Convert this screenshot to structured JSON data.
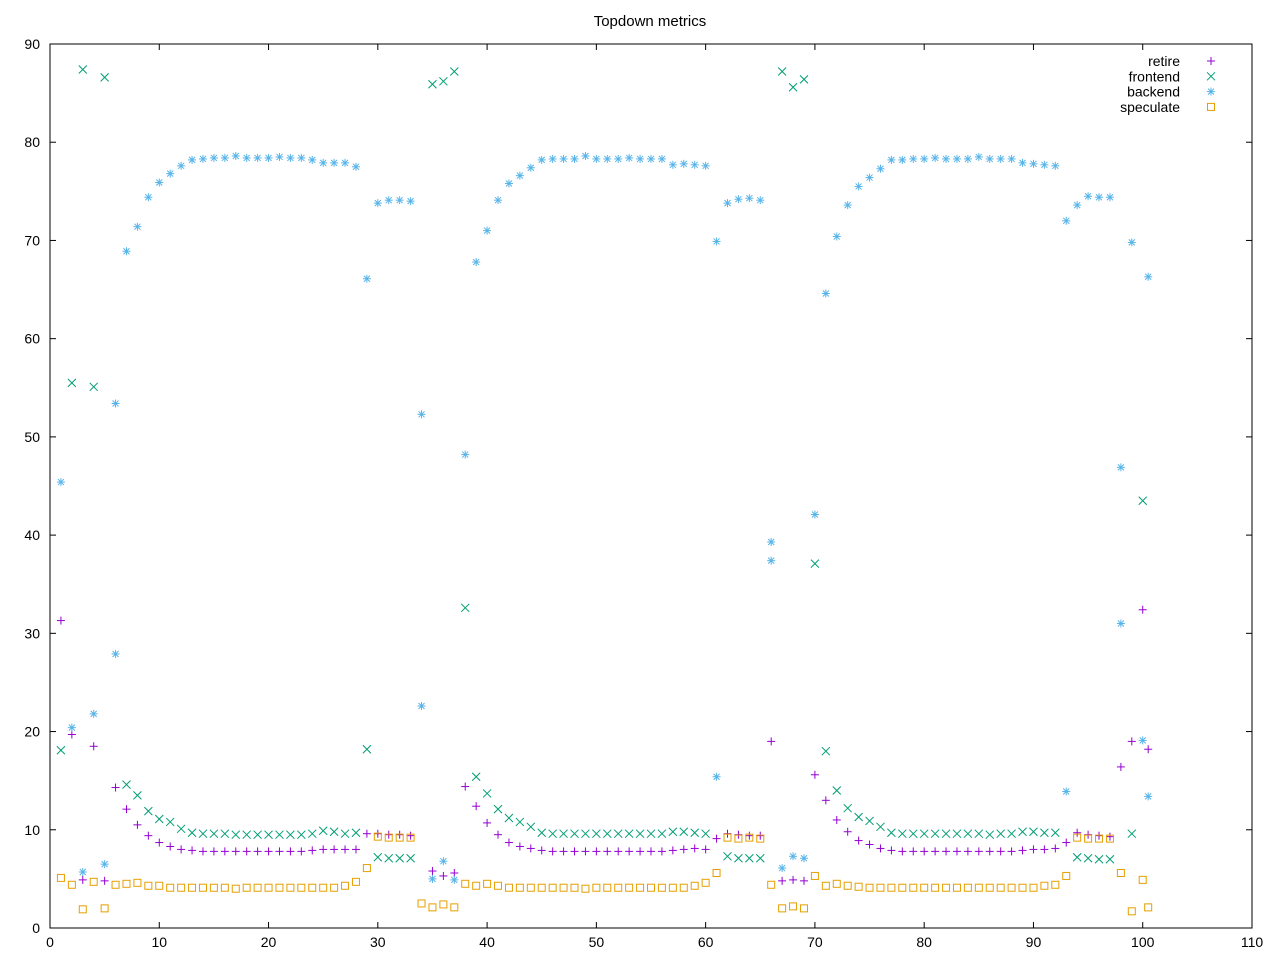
{
  "chart_data": {
    "type": "scatter",
    "title": "Topdown metrics",
    "xlabel": "",
    "ylabel": "",
    "xlim": [
      0,
      110
    ],
    "ylim": [
      0,
      90
    ],
    "xticks": [
      0,
      10,
      20,
      30,
      40,
      50,
      60,
      70,
      80,
      90,
      100,
      110
    ],
    "yticks": [
      0,
      10,
      20,
      30,
      40,
      50,
      60,
      70,
      80,
      90
    ],
    "grid": false,
    "legend_position": "top-right",
    "series": [
      {
        "name": "retire",
        "marker": "plus",
        "color": "#9400d3",
        "x": [
          1,
          2,
          3,
          4,
          5,
          6,
          7,
          8,
          9,
          10,
          11,
          12,
          13,
          14,
          15,
          16,
          17,
          18,
          19,
          20,
          21,
          22,
          23,
          24,
          25,
          26,
          27,
          28,
          29,
          30,
          31,
          32,
          33,
          35,
          36,
          37,
          38,
          39,
          40,
          41,
          42,
          43,
          44,
          45,
          46,
          47,
          48,
          49,
          50,
          51,
          52,
          53,
          54,
          55,
          56,
          57,
          58,
          59,
          60,
          61,
          62,
          63,
          64,
          65,
          66,
          67,
          68,
          69,
          70,
          71,
          72,
          73,
          74,
          75,
          76,
          77,
          78,
          79,
          80,
          81,
          82,
          83,
          84,
          85,
          86,
          87,
          88,
          89,
          90,
          91,
          92,
          93,
          94,
          95,
          96,
          97,
          98,
          99,
          100,
          100.5
        ],
        "y": [
          31.3,
          19.7,
          4.9,
          18.5,
          4.8,
          14.3,
          12.1,
          10.5,
          9.4,
          8.7,
          8.3,
          8.0,
          7.9,
          7.8,
          7.8,
          7.8,
          7.8,
          7.8,
          7.8,
          7.8,
          7.8,
          7.8,
          7.8,
          7.9,
          8.0,
          8.0,
          8.0,
          8.0,
          9.6,
          9.6,
          9.5,
          9.5,
          9.4,
          5.8,
          5.3,
          5.6,
          14.4,
          12.4,
          10.7,
          9.5,
          8.7,
          8.3,
          8.1,
          7.9,
          7.8,
          7.8,
          7.8,
          7.8,
          7.8,
          7.8,
          7.8,
          7.8,
          7.8,
          7.8,
          7.8,
          7.9,
          8.0,
          8.1,
          8.0,
          9.1,
          9.6,
          9.5,
          9.4,
          9.4,
          19.0,
          4.8,
          4.9,
          4.8,
          15.6,
          13.0,
          11.0,
          9.8,
          8.9,
          8.5,
          8.1,
          7.9,
          7.8,
          7.8,
          7.8,
          7.8,
          7.8,
          7.8,
          7.8,
          7.8,
          7.8,
          7.8,
          7.8,
          7.9,
          8.0,
          8.0,
          8.1,
          8.7,
          9.7,
          9.5,
          9.4,
          9.3,
          16.4,
          19.0,
          32.4,
          18.2
        ]
      },
      {
        "name": "frontend",
        "marker": "cross",
        "color": "#009e73",
        "x": [
          1,
          2,
          3,
          4,
          5,
          7,
          8,
          9,
          10,
          11,
          12,
          13,
          14,
          15,
          16,
          17,
          18,
          19,
          20,
          21,
          22,
          23,
          24,
          25,
          26,
          27,
          28,
          29,
          30,
          31,
          32,
          33,
          35,
          36,
          37,
          38,
          39,
          40,
          41,
          42,
          43,
          44,
          45,
          46,
          47,
          48,
          49,
          50,
          51,
          52,
          53,
          54,
          55,
          56,
          57,
          58,
          59,
          60,
          62,
          63,
          64,
          65,
          67,
          68,
          69,
          70,
          71,
          72,
          73,
          74,
          75,
          76,
          77,
          78,
          79,
          80,
          81,
          82,
          83,
          84,
          85,
          86,
          87,
          88,
          89,
          90,
          91,
          92,
          94,
          95,
          96,
          97,
          99,
          100
        ],
        "y": [
          18.1,
          55.5,
          87.4,
          55.1,
          86.6,
          14.6,
          13.5,
          11.9,
          11.1,
          10.8,
          10.1,
          9.7,
          9.6,
          9.6,
          9.6,
          9.5,
          9.5,
          9.5,
          9.5,
          9.5,
          9.5,
          9.5,
          9.6,
          9.9,
          9.8,
          9.6,
          9.7,
          18.2,
          7.2,
          7.1,
          7.1,
          7.1,
          85.9,
          86.2,
          87.2,
          32.6,
          15.4,
          13.7,
          12.1,
          11.2,
          10.8,
          10.3,
          9.7,
          9.6,
          9.6,
          9.6,
          9.6,
          9.6,
          9.6,
          9.6,
          9.6,
          9.6,
          9.6,
          9.6,
          9.8,
          9.8,
          9.7,
          9.6,
          7.3,
          7.1,
          7.1,
          7.1,
          87.2,
          85.6,
          86.4,
          37.1,
          18.0,
          14.0,
          12.2,
          11.3,
          10.9,
          10.3,
          9.7,
          9.6,
          9.6,
          9.6,
          9.6,
          9.6,
          9.6,
          9.6,
          9.6,
          9.5,
          9.6,
          9.6,
          9.8,
          9.8,
          9.7,
          9.7,
          7.2,
          7.1,
          7.0,
          7.0,
          9.6,
          43.5
        ]
      },
      {
        "name": "backend",
        "marker": "star",
        "color": "#56b4e9",
        "x": [
          1,
          2,
          3,
          4,
          5,
          6,
          6,
          7,
          8,
          9,
          10,
          11,
          12,
          13,
          14,
          15,
          16,
          17,
          18,
          19,
          20,
          21,
          22,
          23,
          24,
          25,
          26,
          27,
          28,
          29,
          30,
          31,
          32,
          33,
          34,
          34,
          35,
          36,
          37,
          38,
          39,
          40,
          41,
          42,
          43,
          44,
          45,
          46,
          47,
          48,
          49,
          50,
          51,
          52,
          53,
          54,
          55,
          56,
          57,
          58,
          59,
          60,
          61,
          61,
          62,
          63,
          64,
          65,
          66,
          66,
          67,
          68,
          69,
          70,
          71,
          72,
          73,
          74,
          75,
          76,
          77,
          78,
          79,
          80,
          81,
          82,
          83,
          84,
          85,
          86,
          87,
          88,
          89,
          90,
          91,
          92,
          93,
          93,
          94,
          95,
          96,
          97,
          98,
          98,
          99,
          100,
          100.5,
          100.5
        ],
        "y": [
          45.4,
          20.4,
          5.7,
          21.8,
          6.5,
          53.4,
          27.9,
          68.9,
          71.4,
          74.4,
          75.9,
          76.8,
          77.6,
          78.2,
          78.3,
          78.4,
          78.4,
          78.6,
          78.4,
          78.4,
          78.4,
          78.5,
          78.4,
          78.4,
          78.2,
          77.9,
          77.9,
          77.9,
          77.5,
          66.1,
          73.8,
          74.1,
          74.1,
          74.0,
          52.3,
          22.6,
          5.0,
          6.8,
          4.9,
          48.2,
          67.8,
          71.0,
          74.1,
          75.8,
          76.6,
          77.4,
          78.2,
          78.3,
          78.3,
          78.3,
          78.6,
          78.3,
          78.3,
          78.3,
          78.4,
          78.3,
          78.3,
          78.3,
          77.7,
          77.8,
          77.7,
          77.6,
          69.9,
          15.4,
          73.8,
          74.2,
          74.3,
          74.1,
          39.3,
          37.4,
          6.1,
          7.3,
          7.1,
          42.1,
          64.6,
          70.4,
          73.6,
          75.5,
          76.4,
          77.3,
          78.2,
          78.2,
          78.3,
          78.3,
          78.4,
          78.3,
          78.3,
          78.3,
          78.5,
          78.3,
          78.3,
          78.3,
          77.9,
          77.8,
          77.7,
          77.6,
          72.0,
          13.9,
          73.6,
          74.5,
          74.4,
          74.4,
          46.9,
          31.0,
          69.8,
          19.1,
          66.3,
          13.4
        ]
      },
      {
        "name": "speculate",
        "marker": "square",
        "color": "#e69f00",
        "x": [
          1,
          2,
          3,
          4,
          5,
          6,
          7,
          8,
          9,
          10,
          11,
          12,
          13,
          14,
          15,
          16,
          17,
          18,
          19,
          20,
          21,
          22,
          23,
          24,
          25,
          26,
          27,
          28,
          29,
          30,
          31,
          32,
          33,
          34,
          35,
          36,
          37,
          38,
          39,
          40,
          41,
          42,
          43,
          44,
          45,
          46,
          47,
          48,
          49,
          50,
          51,
          52,
          53,
          54,
          55,
          56,
          57,
          58,
          59,
          60,
          61,
          62,
          63,
          64,
          65,
          66,
          67,
          68,
          69,
          70,
          71,
          72,
          73,
          74,
          75,
          76,
          77,
          78,
          79,
          80,
          81,
          82,
          83,
          84,
          85,
          86,
          87,
          88,
          89,
          90,
          91,
          92,
          93,
          94,
          95,
          96,
          97,
          98,
          99,
          100,
          100.5
        ],
        "y": [
          5.1,
          4.4,
          1.9,
          4.7,
          2.0,
          4.4,
          4.5,
          4.6,
          4.3,
          4.3,
          4.1,
          4.1,
          4.1,
          4.1,
          4.1,
          4.1,
          4.0,
          4.1,
          4.1,
          4.1,
          4.1,
          4.1,
          4.1,
          4.1,
          4.1,
          4.1,
          4.3,
          4.7,
          6.1,
          9.3,
          9.2,
          9.2,
          9.2,
          2.5,
          2.1,
          2.4,
          2.1,
          4.5,
          4.3,
          4.5,
          4.3,
          4.1,
          4.1,
          4.1,
          4.1,
          4.1,
          4.1,
          4.1,
          4.0,
          4.1,
          4.1,
          4.1,
          4.1,
          4.1,
          4.1,
          4.1,
          4.1,
          4.1,
          4.3,
          4.6,
          5.6,
          9.2,
          9.1,
          9.2,
          9.1,
          4.4,
          2.0,
          2.2,
          2.0,
          5.3,
          4.3,
          4.5,
          4.3,
          4.2,
          4.1,
          4.1,
          4.1,
          4.1,
          4.1,
          4.1,
          4.1,
          4.1,
          4.1,
          4.1,
          4.1,
          4.1,
          4.1,
          4.1,
          4.1,
          4.1,
          4.3,
          4.4,
          5.3,
          9.2,
          9.1,
          9.1,
          9.1,
          5.6,
          1.7,
          4.9,
          2.1
        ]
      }
    ]
  }
}
